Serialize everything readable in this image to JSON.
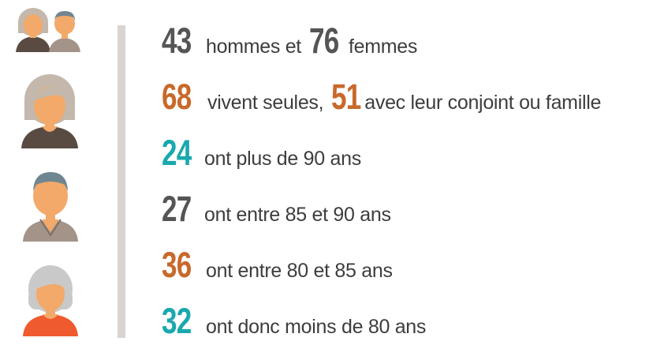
{
  "colors": {
    "dark": "#555555",
    "orange": "#c8692a",
    "teal": "#19a8ad",
    "divider": "#d9d4d0",
    "text": "#3d3d3d"
  },
  "avatars": [
    {
      "icon": "elderly-couple-icon"
    },
    {
      "icon": "elderly-woman-icon"
    },
    {
      "icon": "elderly-man-icon"
    },
    {
      "icon": "elderly-woman-grey-hair-icon"
    }
  ],
  "stats": [
    {
      "n1": "43",
      "t1": "hommes et",
      "n2": "76",
      "t2": "femmes",
      "color": "dark"
    },
    {
      "n1": "68",
      "t1": "vivent seules,",
      "n2": "51",
      "t2": "avec leur conjoint ou famille",
      "color": "orange"
    },
    {
      "n1": "24",
      "t1": "ont plus de 90 ans",
      "color": "teal"
    },
    {
      "n1": "27",
      "t1": "ont entre 85 et 90 ans",
      "color": "dark"
    },
    {
      "n1": "36",
      "t1": "ont entre 80 et 85 ans",
      "color": "orange"
    },
    {
      "n1": "32",
      "t1": "ont donc moins de 80 ans",
      "color": "teal"
    }
  ]
}
